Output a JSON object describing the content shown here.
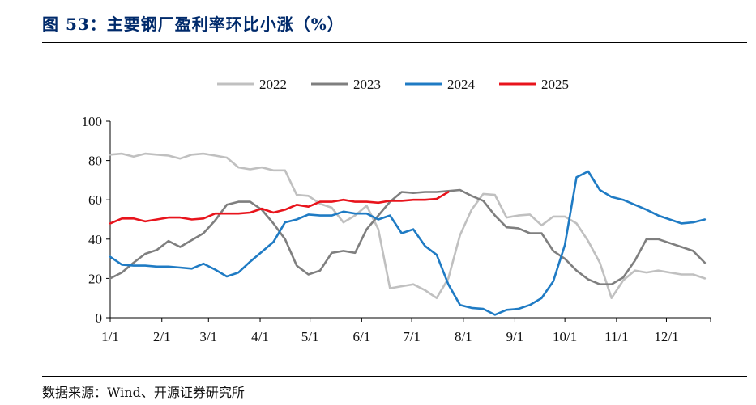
{
  "header": {
    "title": "图 53：主要钢厂盈利率环比小涨（%）"
  },
  "footer": {
    "source": "数据来源：Wind、开源证券研究所"
  },
  "chart_data": {
    "type": "line",
    "title": "",
    "xlabel": "",
    "ylabel": "",
    "ylim": [
      0,
      100
    ],
    "yticks": [
      0,
      20,
      40,
      60,
      80,
      100
    ],
    "xlim": [
      1,
      52.5
    ],
    "xticks": [
      {
        "label": "1/1",
        "week": 1
      },
      {
        "label": "2/1",
        "week": 5.43
      },
      {
        "label": "3/1",
        "week": 9.43
      },
      {
        "label": "4/1",
        "week": 13.86
      },
      {
        "label": "5/1",
        "week": 18.14
      },
      {
        "label": "6/1",
        "week": 22.57
      },
      {
        "label": "7/1",
        "week": 26.86
      },
      {
        "label": "8/1",
        "week": 31.29
      },
      {
        "label": "9/1",
        "week": 35.71
      },
      {
        "label": "10/1",
        "week": 40
      },
      {
        "label": "11/1",
        "week": 44.43
      },
      {
        "label": "12/1",
        "week": 48.71
      }
    ],
    "legend_position": "top",
    "grid": false,
    "series": [
      {
        "name": "2022",
        "color": "#c0c0c0",
        "values": [
          83,
          83.5,
          82,
          83.5,
          83,
          82.5,
          81,
          83,
          83.5,
          82.5,
          81.5,
          76.5,
          75.5,
          76.5,
          75,
          75,
          62.5,
          62,
          58,
          56,
          48.5,
          52,
          57,
          45,
          15,
          16,
          17,
          14,
          10,
          20,
          42,
          55,
          63,
          62.5,
          51,
          52,
          52.5,
          47,
          51.5,
          51.5,
          48,
          39,
          28,
          10,
          19,
          24,
          23,
          24,
          23,
          22,
          22,
          20
        ]
      },
      {
        "name": "2023",
        "color": "#7f7f7f",
        "values": [
          20,
          23,
          28,
          32.5,
          34.5,
          39,
          36,
          39.5,
          43,
          49.5,
          57.5,
          59,
          59,
          55,
          48,
          40,
          26.5,
          22,
          24,
          33,
          34,
          33,
          45,
          52,
          59,
          64,
          63.5,
          64,
          64,
          64.5,
          65,
          62,
          59.5,
          52,
          46,
          45.5,
          43,
          43,
          34,
          30,
          24,
          19.5,
          17,
          17,
          20.5,
          29,
          40,
          40,
          38,
          36,
          34,
          28
        ]
      },
      {
        "name": "2024",
        "color": "#1f7bc4",
        "values": [
          31,
          27,
          26.5,
          26.5,
          26,
          26,
          25.5,
          25,
          27.5,
          24.5,
          21,
          23,
          28.5,
          33.5,
          38.5,
          48.5,
          50,
          52.5,
          52,
          52,
          54,
          53,
          53,
          50,
          52,
          43,
          45,
          36.5,
          32,
          17,
          6.5,
          5,
          4.5,
          1.5,
          4,
          4.5,
          6.5,
          10,
          18.5,
          37,
          71.5,
          74.5,
          65,
          61.5,
          60,
          57.5,
          55,
          52,
          50,
          48,
          48.5,
          50
        ]
      },
      {
        "name": "2025",
        "color": "#e8141c",
        "values": [
          48,
          50.5,
          50.5,
          49,
          50,
          51,
          51,
          50,
          50.5,
          53,
          53,
          53,
          53.5,
          55.5,
          53.5,
          55,
          57.5,
          56.5,
          59,
          59,
          60,
          59,
          59,
          58.5,
          59.5,
          59.5,
          60,
          60,
          60.5,
          64
        ]
      }
    ]
  }
}
